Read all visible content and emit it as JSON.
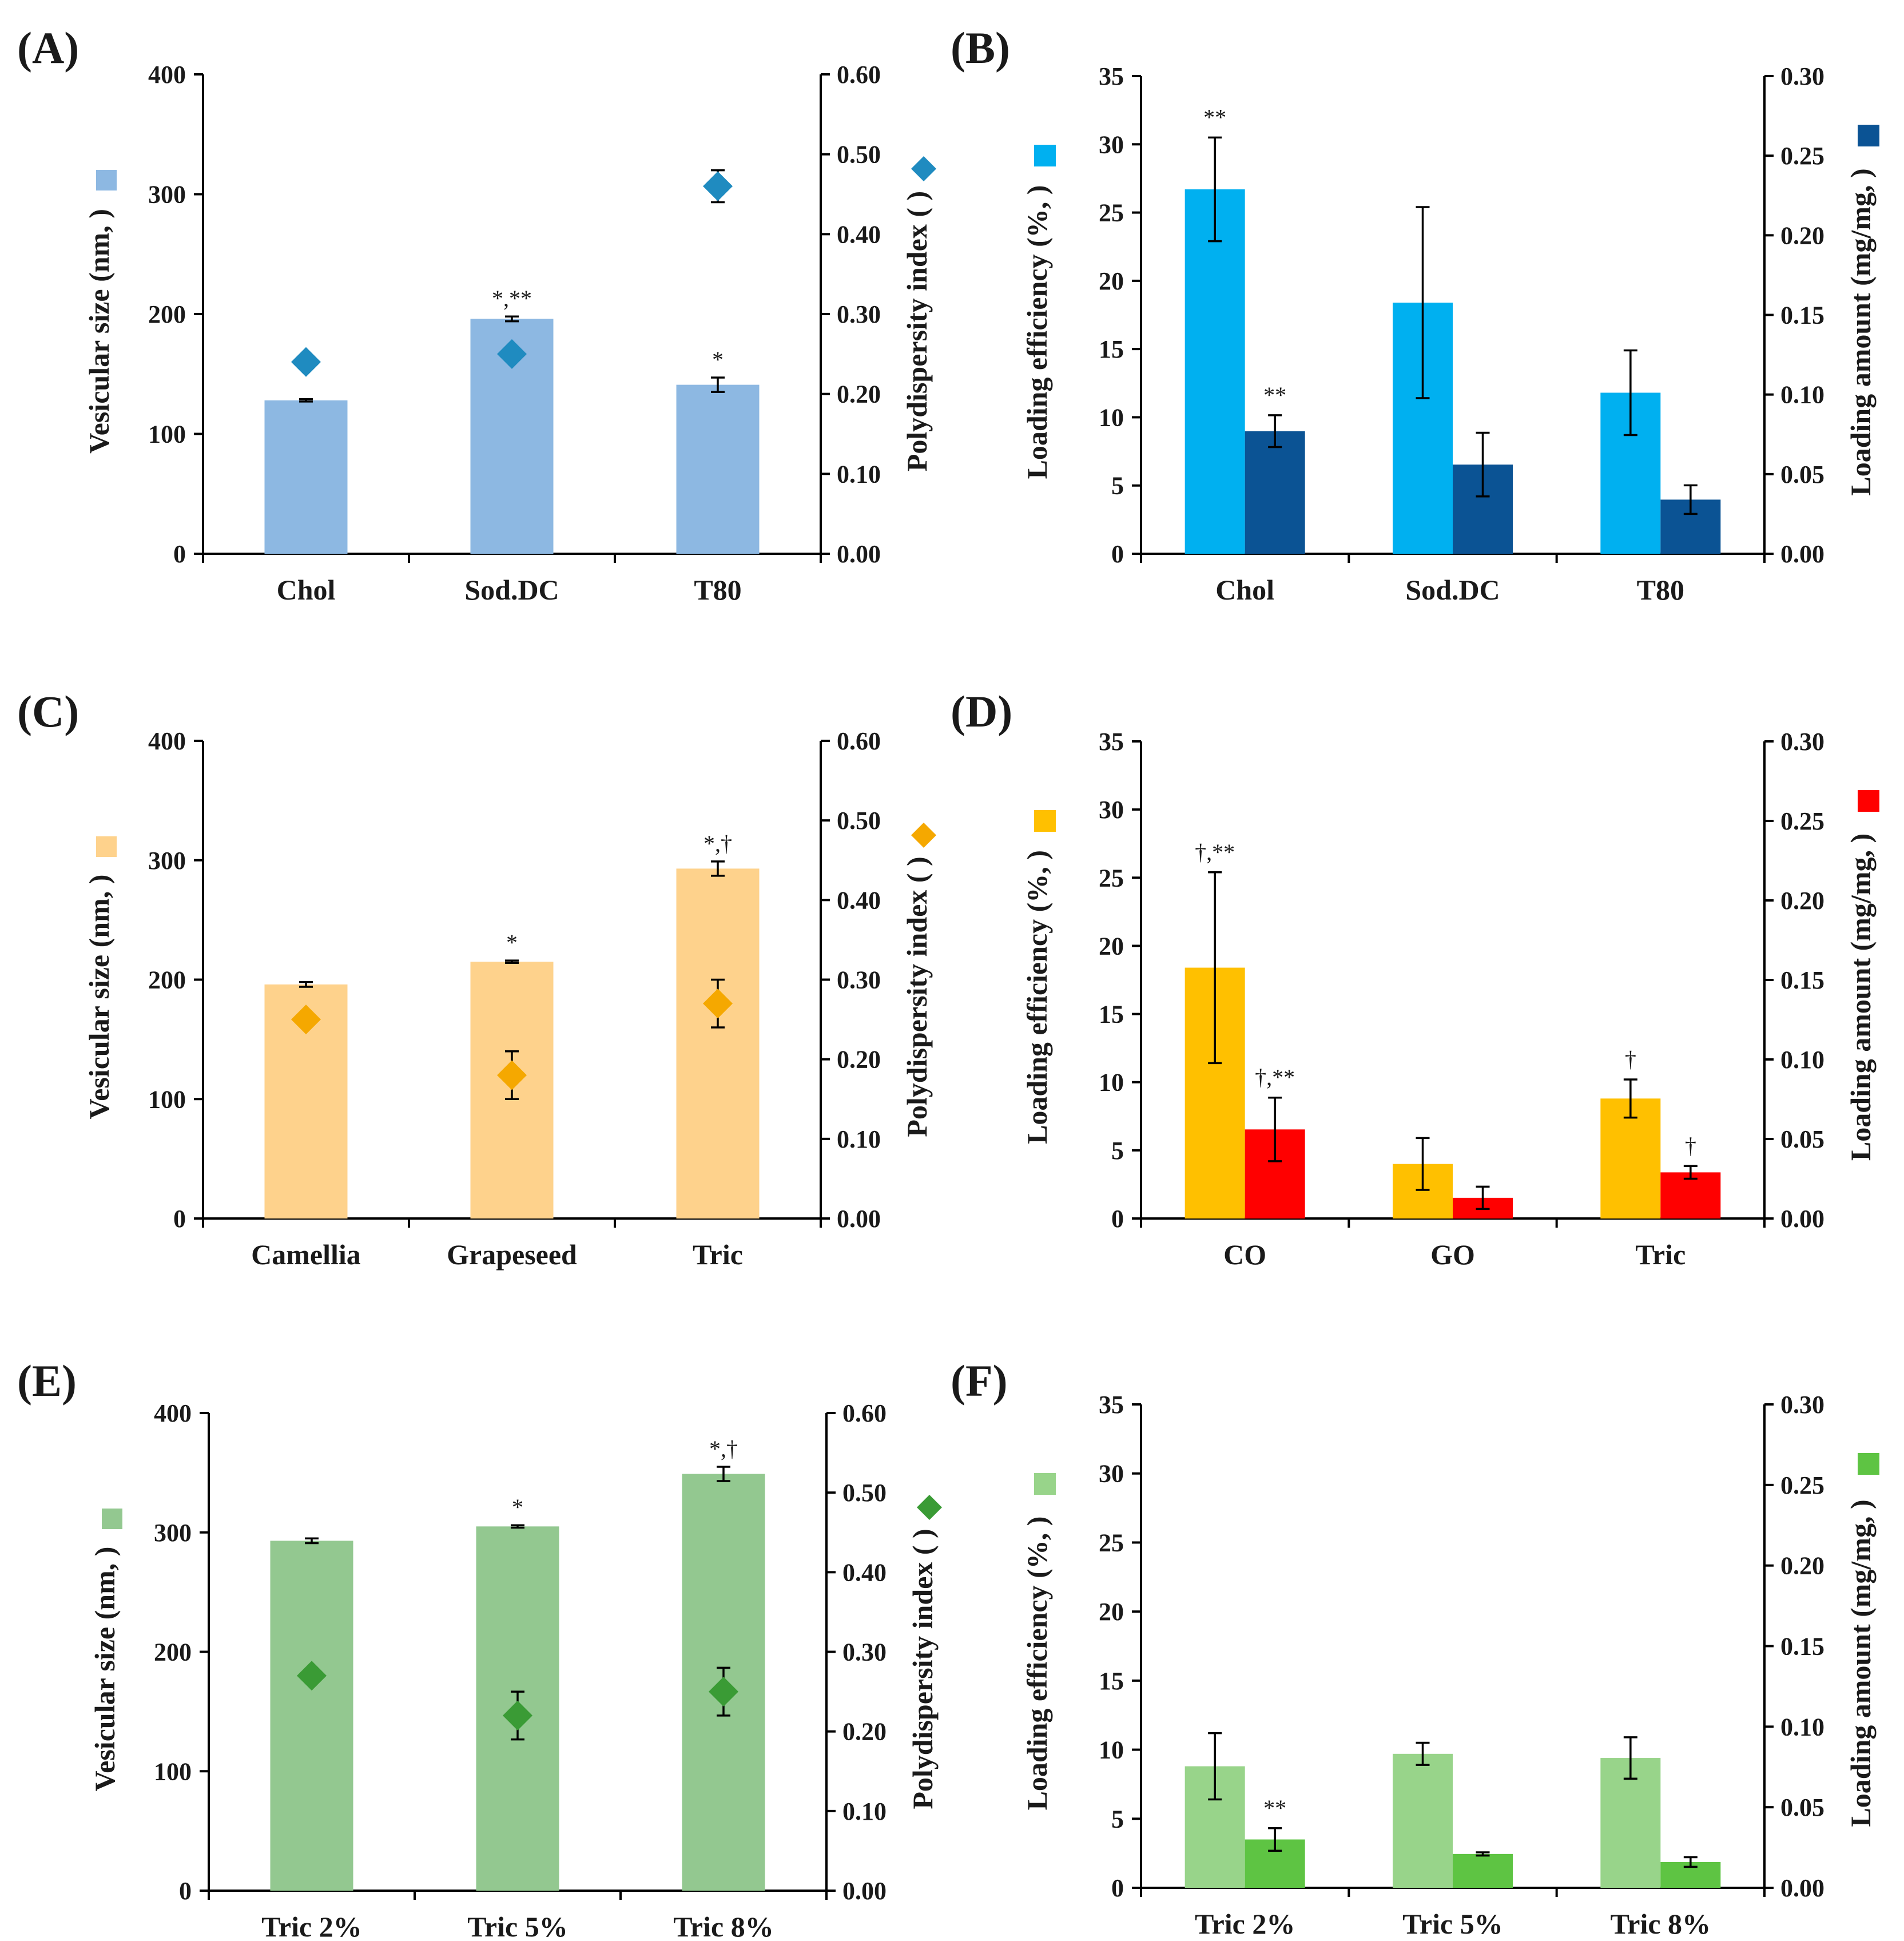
{
  "figure": {
    "panels": [
      "A",
      "B",
      "C",
      "D",
      "E",
      "F"
    ]
  },
  "chart_data": [
    {
      "panel": "A",
      "panel_label": "(A)",
      "type": "bar",
      "categories": [
        "Chol",
        "Sod.DC",
        "T80"
      ],
      "series": [
        {
          "name": "Vesicular size",
          "kind": "bar",
          "axis": "left",
          "color": "#8db8e2",
          "values": [
            128,
            196,
            141
          ],
          "errors": [
            1,
            2,
            6
          ],
          "annotations": [
            "",
            "*,**",
            "*"
          ]
        },
        {
          "name": "Polydispersity index",
          "kind": "diamond",
          "axis": "right",
          "color": "#1f8bc0",
          "values": [
            0.24,
            0.25,
            0.46
          ],
          "errors": [
            0,
            0,
            0.02
          ]
        }
      ],
      "ylabel_left": "Vesicular size (nm,   )",
      "ylabel_right": "Polydispersity index (   )",
      "ylim_left": [
        0,
        400
      ],
      "ylim_right": [
        0,
        0.6
      ],
      "yticks_left": [
        "0",
        "100",
        "200",
        "300",
        "400"
      ],
      "yticks_right": [
        "0.00",
        "0.10",
        "0.20",
        "0.30",
        "0.40",
        "0.50",
        "0.60"
      ],
      "legend": "left-marker-and-right-marker"
    },
    {
      "panel": "B",
      "panel_label": "(B)",
      "type": "bar",
      "categories": [
        "Chol",
        "Sod.DC",
        "T80"
      ],
      "series": [
        {
          "name": "Loading efficiency",
          "kind": "bar",
          "axis": "left",
          "color": "#00b0f0",
          "values": [
            26.7,
            18.4,
            11.8
          ],
          "errors": [
            3.8,
            7.0,
            3.1
          ],
          "annotations": [
            "**",
            "",
            ""
          ]
        },
        {
          "name": "Loading amount",
          "kind": "bar",
          "axis": "right",
          "color": "#0b5394",
          "values": [
            0.077,
            0.056,
            0.034
          ],
          "errors": [
            0.01,
            0.02,
            0.009
          ],
          "annotations": [
            "**",
            "",
            ""
          ]
        }
      ],
      "ylabel_left": "Loading efficiency (%,   )",
      "ylabel_right": "Loading amount (mg/mg,   )",
      "ylim_left": [
        0,
        35
      ],
      "ylim_right": [
        0,
        0.3
      ],
      "yticks_left": [
        "0",
        "5",
        "10",
        "15",
        "20",
        "25",
        "30",
        "35"
      ],
      "yticks_right": [
        "0.00",
        "0.05",
        "0.10",
        "0.15",
        "0.20",
        "0.25",
        "0.30"
      ],
      "legend": "left-marker-and-right-marker"
    },
    {
      "panel": "C",
      "panel_label": "(C)",
      "type": "bar",
      "categories": [
        "Camellia",
        "Grapeseed",
        "Tric"
      ],
      "series": [
        {
          "name": "Vesicular size",
          "kind": "bar",
          "axis": "left",
          "color": "#fed28c",
          "values": [
            196,
            215,
            293
          ],
          "errors": [
            2,
            1,
            6
          ],
          "annotations": [
            "",
            "*",
            "*,†"
          ]
        },
        {
          "name": "Polydispersity index",
          "kind": "diamond",
          "axis": "right",
          "color": "#f5a800",
          "values": [
            0.25,
            0.18,
            0.27
          ],
          "errors": [
            0,
            0.03,
            0.03
          ]
        }
      ],
      "ylabel_left": "Vesicular size (nm,   )",
      "ylabel_right": "Polydispersity index (   )",
      "ylim_left": [
        0,
        400
      ],
      "ylim_right": [
        0,
        0.6
      ],
      "yticks_left": [
        "0",
        "100",
        "200",
        "300",
        "400"
      ],
      "yticks_right": [
        "0.00",
        "0.10",
        "0.20",
        "0.30",
        "0.40",
        "0.50",
        "0.60"
      ],
      "legend": "left-marker-and-right-marker"
    },
    {
      "panel": "D",
      "panel_label": "(D)",
      "type": "bar",
      "categories": [
        "CO",
        "GO",
        "Tric"
      ],
      "series": [
        {
          "name": "Loading efficiency",
          "kind": "bar",
          "axis": "left",
          "color": "#ffc000",
          "values": [
            18.4,
            4.0,
            8.8
          ],
          "errors": [
            7.0,
            1.9,
            1.4
          ],
          "annotations": [
            "†,**",
            "",
            "†"
          ]
        },
        {
          "name": "Loading amount",
          "kind": "bar",
          "axis": "right",
          "color": "#ff0000",
          "values": [
            0.056,
            0.013,
            0.029
          ],
          "errors": [
            0.02,
            0.007,
            0.004
          ],
          "annotations": [
            "†,**",
            "",
            "†"
          ]
        }
      ],
      "ylabel_left": "Loading efficiency (%,   )",
      "ylabel_right": "Loading amount (mg/mg,   )",
      "ylim_left": [
        0,
        35
      ],
      "ylim_right": [
        0,
        0.3
      ],
      "yticks_left": [
        "0",
        "5",
        "10",
        "15",
        "20",
        "25",
        "30",
        "35"
      ],
      "yticks_right": [
        "0.00",
        "0.05",
        "0.10",
        "0.15",
        "0.20",
        "0.25",
        "0.30"
      ],
      "legend": "left-marker-and-right-marker"
    },
    {
      "panel": "E",
      "panel_label": "(E)",
      "type": "bar",
      "categories": [
        "Tric 2%",
        "Tric 5%",
        "Tric 8%"
      ],
      "series": [
        {
          "name": "Vesicular size",
          "kind": "bar",
          "axis": "left",
          "color": "#93c890",
          "values": [
            293,
            305,
            349
          ],
          "errors": [
            2,
            1,
            6
          ],
          "annotations": [
            "",
            "*",
            "*,†"
          ]
        },
        {
          "name": "Polydispersity index",
          "kind": "diamond",
          "axis": "right",
          "color": "#3a9b35",
          "values": [
            0.27,
            0.22,
            0.25
          ],
          "errors": [
            0,
            0.03,
            0.03
          ]
        }
      ],
      "ylabel_left": "Vesicular size (nm,   )",
      "ylabel_right": "Polydispersity index (   )",
      "ylim_left": [
        0,
        400
      ],
      "ylim_right": [
        0,
        0.6
      ],
      "yticks_left": [
        "0",
        "100",
        "200",
        "300",
        "400"
      ],
      "yticks_right": [
        "0.00",
        "0.10",
        "0.20",
        "0.30",
        "0.40",
        "0.50",
        "0.60"
      ],
      "legend": "left-marker-and-right-marker"
    },
    {
      "panel": "F",
      "panel_label": "(F)",
      "type": "bar",
      "categories": [
        "Tric 2%",
        "Tric 5%",
        "Tric 8%"
      ],
      "series": [
        {
          "name": "Loading efficiency",
          "kind": "bar",
          "axis": "left",
          "color": "#98d48a",
          "values": [
            8.8,
            9.7,
            9.4
          ],
          "errors": [
            2.4,
            0.8,
            1.5
          ],
          "annotations": [
            "",
            "",
            ""
          ]
        },
        {
          "name": "Loading amount",
          "kind": "bar",
          "axis": "right",
          "color": "#5ec443",
          "values": [
            0.03,
            0.021,
            0.016
          ],
          "errors": [
            0.007,
            0.001,
            0.003
          ],
          "annotations": [
            "**",
            "",
            ""
          ]
        }
      ],
      "ylabel_left": "Loading efficiency (%,   )",
      "ylabel_right": "Loading amount (mg/mg,   )",
      "ylim_left": [
        0,
        35
      ],
      "ylim_right": [
        0,
        0.3
      ],
      "yticks_left": [
        "0",
        "5",
        "10",
        "15",
        "20",
        "25",
        "30",
        "35"
      ],
      "yticks_right": [
        "0.00",
        "0.05",
        "0.10",
        "0.15",
        "0.20",
        "0.25",
        "0.30"
      ],
      "legend": "left-marker-and-right-marker"
    }
  ]
}
